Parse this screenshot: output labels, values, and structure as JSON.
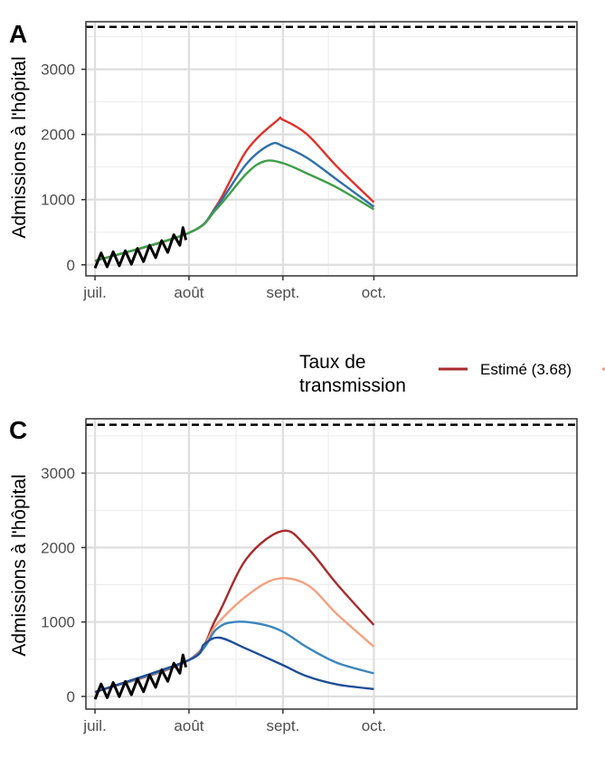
{
  "chart_data": [
    {
      "panel": "A",
      "type": "line",
      "ylabel": "Admissions à l'hôpital",
      "xlabel": "",
      "x_ticks": [
        "juil.",
        "août",
        "sept.",
        "oct."
      ],
      "y_ticks": [
        "0",
        "1000",
        "2000",
        "3000"
      ],
      "ylim": [
        -170,
        3730
      ],
      "xlim": [
        -3,
        159
      ],
      "x_tick_days": [
        0,
        31,
        62,
        92
      ],
      "capacity_line": 3650,
      "observed": {
        "color": "#000000",
        "x": [
          0,
          2,
          4,
          6,
          8,
          10,
          12,
          14,
          16,
          18,
          20,
          22,
          24,
          26,
          28,
          29,
          30
        ],
        "y": [
          60,
          70,
          80,
          90,
          95,
          105,
          120,
          140,
          160,
          190,
          220,
          260,
          300,
          350,
          410,
          460,
          490
        ]
      },
      "series": [
        {
          "color": "#e0312b",
          "x": [
            0,
            31,
            40,
            50,
            60,
            62,
            70,
            80,
            92
          ],
          "y": [
            60,
            490,
            900,
            1750,
            2210,
            2225,
            2000,
            1500,
            960
          ]
        },
        {
          "color": "#2f6fa8",
          "x": [
            0,
            31,
            40,
            50,
            58,
            62,
            70,
            80,
            92
          ],
          "y": [
            60,
            490,
            880,
            1550,
            1850,
            1820,
            1640,
            1300,
            890
          ]
        },
        {
          "color": "#3f9e47",
          "x": [
            0,
            31,
            40,
            50,
            56,
            62,
            70,
            80,
            92
          ],
          "y": [
            60,
            490,
            850,
            1400,
            1590,
            1560,
            1400,
            1180,
            850
          ]
        }
      ]
    },
    {
      "panel": "C",
      "type": "line",
      "ylabel": "Admissions à l'hôpital",
      "xlabel": "",
      "x_ticks": [
        "juil.",
        "août",
        "sept.",
        "oct."
      ],
      "y_ticks": [
        "0",
        "1000",
        "2000",
        "3000"
      ],
      "ylim": [
        -170,
        3730
      ],
      "xlim": [
        -3,
        159
      ],
      "x_tick_days": [
        0,
        31,
        62,
        92
      ],
      "capacity_line": 3650,
      "observed": {
        "color": "#000000",
        "x": [
          0,
          2,
          4,
          6,
          8,
          10,
          12,
          14,
          16,
          18,
          20,
          22,
          24,
          26,
          28,
          29,
          30
        ],
        "y": [
          60,
          70,
          80,
          90,
          95,
          105,
          120,
          140,
          160,
          190,
          220,
          260,
          300,
          350,
          410,
          460,
          490
        ]
      },
      "legend": {
        "title": "Taux de\ntransmission",
        "entries": [
          {
            "label": "Estimé (3.68)",
            "color": "#a82a2a"
          }
        ]
      },
      "series": [
        {
          "color": "#a82a2a",
          "x": [
            0,
            31,
            40,
            50,
            62,
            70,
            80,
            92
          ],
          "y": [
            60,
            490,
            1050,
            1850,
            2225,
            2000,
            1500,
            960
          ]
        },
        {
          "color": "#f4a07e",
          "x": [
            0,
            31,
            40,
            50,
            60,
            70,
            80,
            92
          ],
          "y": [
            60,
            490,
            960,
            1350,
            1580,
            1500,
            1100,
            670
          ]
        },
        {
          "color": "#3b86bc",
          "x": [
            0,
            31,
            40,
            46,
            55,
            62,
            70,
            80,
            92
          ],
          "y": [
            60,
            490,
            900,
            1000,
            970,
            870,
            660,
            450,
            310
          ]
        },
        {
          "color": "#1f4e96",
          "x": [
            0,
            31,
            36,
            41,
            50,
            62,
            70,
            80,
            92
          ],
          "y": [
            60,
            490,
            700,
            790,
            640,
            420,
            270,
            160,
            100
          ]
        }
      ]
    }
  ]
}
